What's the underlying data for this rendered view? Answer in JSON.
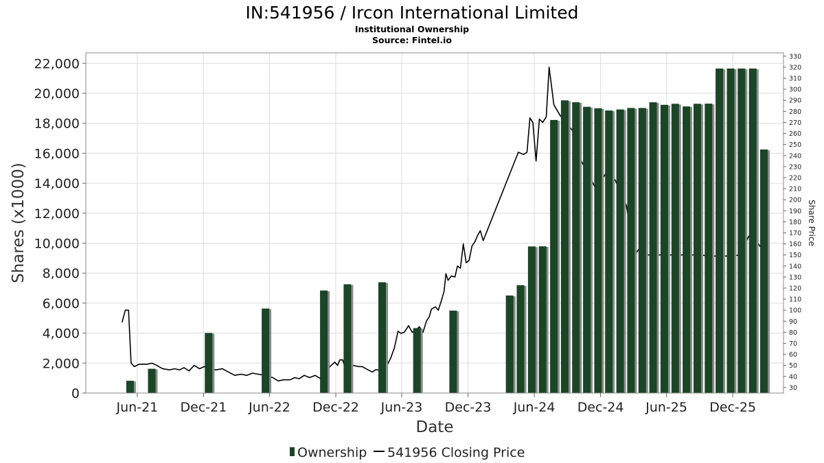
{
  "chart_data": {
    "type": "bar",
    "title": "IN:541956 / Ircon International Limited",
    "subtitle_lines": [
      "Institutional Ownership",
      "Source: Fintel.io"
    ],
    "xlabel": "Date",
    "ylabel": "Shares (x1000)",
    "y2label": "Share Price",
    "ylim": [
      0,
      22700
    ],
    "y2lim": [
      25,
      333
    ],
    "grid": true,
    "legend_position": "bottom-center",
    "colors": {
      "ownership": "#1a4526",
      "ownership_shadow": "#8a8a8a",
      "price": "#000000"
    },
    "left_ticks": [
      "0",
      "2,000",
      "4,000",
      "6,000",
      "8,000",
      "10,000",
      "12,000",
      "14,000",
      "16,000",
      "18,000",
      "20,000",
      "22,000"
    ],
    "left_tick_values": [
      0,
      2000,
      4000,
      6000,
      8000,
      10000,
      12000,
      14000,
      16000,
      18000,
      20000,
      22000
    ],
    "right_ticks": [
      "30",
      "40",
      "50",
      "60",
      "70",
      "80",
      "90",
      "100",
      "110",
      "120",
      "130",
      "140",
      "150",
      "160",
      "170",
      "180",
      "190",
      "200",
      "210",
      "220",
      "230",
      "240",
      "250",
      "260",
      "270",
      "280",
      "290",
      "300",
      "310",
      "320",
      "330"
    ],
    "right_tick_values": [
      30,
      40,
      50,
      60,
      70,
      80,
      90,
      100,
      110,
      120,
      130,
      140,
      150,
      160,
      170,
      180,
      190,
      200,
      210,
      220,
      230,
      240,
      250,
      260,
      270,
      280,
      290,
      300,
      310,
      320,
      330
    ],
    "x_domain": [
      "2021-01-10",
      "2026-04-20"
    ],
    "x_ticks": [
      {
        "label": "Jun-21",
        "date": "2021-06-01"
      },
      {
        "label": "Dec-21",
        "date": "2021-12-01"
      },
      {
        "label": "Jun-22",
        "date": "2022-06-01"
      },
      {
        "label": "Dec-22",
        "date": "2022-12-01"
      },
      {
        "label": "Jun-23",
        "date": "2023-06-01"
      },
      {
        "label": "Dec-23",
        "date": "2023-12-01"
      },
      {
        "label": "Jun-24",
        "date": "2024-06-01"
      },
      {
        "label": "Dec-24",
        "date": "2024-12-01"
      },
      {
        "label": "Jun-25",
        "date": "2025-06-01"
      },
      {
        "label": "Dec-25",
        "date": "2025-12-01"
      }
    ],
    "series": [
      {
        "name": "Ownership",
        "kind": "bar",
        "points": [
          {
            "date": "2021-05-12",
            "value": 820
          },
          {
            "date": "2021-07-11",
            "value": 1620
          },
          {
            "date": "2021-12-15",
            "value": 4010
          },
          {
            "date": "2022-05-21",
            "value": 5640
          },
          {
            "date": "2022-10-29",
            "value": 6840
          },
          {
            "date": "2023-01-02",
            "value": 7260
          },
          {
            "date": "2023-04-08",
            "value": 7390
          },
          {
            "date": "2023-07-13",
            "value": 4330
          },
          {
            "date": "2023-10-21",
            "value": 5500
          },
          {
            "date": "2024-03-25",
            "value": 6510
          },
          {
            "date": "2024-04-24",
            "value": 7200
          },
          {
            "date": "2024-05-25",
            "value": 9780
          },
          {
            "date": "2024-06-24",
            "value": 9790
          },
          {
            "date": "2024-07-25",
            "value": 18220
          },
          {
            "date": "2024-08-24",
            "value": 19530
          },
          {
            "date": "2024-09-24",
            "value": 19400
          },
          {
            "date": "2024-10-24",
            "value": 19100
          },
          {
            "date": "2024-11-24",
            "value": 19000
          },
          {
            "date": "2024-12-24",
            "value": 18850
          },
          {
            "date": "2025-01-24",
            "value": 18920
          },
          {
            "date": "2025-02-23",
            "value": 19020
          },
          {
            "date": "2025-03-26",
            "value": 19020
          },
          {
            "date": "2025-04-25",
            "value": 19400
          },
          {
            "date": "2025-05-26",
            "value": 19230
          },
          {
            "date": "2025-06-25",
            "value": 19300
          },
          {
            "date": "2025-07-26",
            "value": 19120
          },
          {
            "date": "2025-08-25",
            "value": 19300
          },
          {
            "date": "2025-09-25",
            "value": 19310
          },
          {
            "date": "2025-10-25",
            "value": 21650
          },
          {
            "date": "2025-11-25",
            "value": 21650
          },
          {
            "date": "2025-12-25",
            "value": 21650
          },
          {
            "date": "2026-01-25",
            "value": 21650
          },
          {
            "date": "2026-02-25",
            "value": 16250
          }
        ]
      },
      {
        "name": "541956 Closing Price",
        "kind": "line",
        "axis": "right",
        "points": [
          {
            "date": "2021-04-20",
            "price": 89
          },
          {
            "date": "2021-04-29",
            "price": 100
          },
          {
            "date": "2021-05-08",
            "price": 100
          },
          {
            "date": "2021-05-15",
            "price": 52
          },
          {
            "date": "2021-05-24",
            "price": 49
          },
          {
            "date": "2021-06-06",
            "price": 51
          },
          {
            "date": "2021-06-27",
            "price": 51
          },
          {
            "date": "2021-07-12",
            "price": 52
          },
          {
            "date": "2021-07-25",
            "price": 50
          },
          {
            "date": "2021-08-10",
            "price": 47
          },
          {
            "date": "2021-08-29",
            "price": 46
          },
          {
            "date": "2021-09-12",
            "price": 47
          },
          {
            "date": "2021-09-26",
            "price": 46
          },
          {
            "date": "2021-10-08",
            "price": 48
          },
          {
            "date": "2021-10-22",
            "price": 45
          },
          {
            "date": "2021-11-05",
            "price": 50
          },
          {
            "date": "2021-11-20",
            "price": 47
          },
          {
            "date": "2021-12-03",
            "price": 49
          },
          {
            "date": "2021-12-20",
            "price": 46
          },
          {
            "date": "2022-01-05",
            "price": 46
          },
          {
            "date": "2022-01-22",
            "price": 47
          },
          {
            "date": "2022-02-08",
            "price": 44
          },
          {
            "date": "2022-02-25",
            "price": 41
          },
          {
            "date": "2022-03-15",
            "price": 42
          },
          {
            "date": "2022-03-30",
            "price": 41
          },
          {
            "date": "2022-04-15",
            "price": 43
          },
          {
            "date": "2022-05-01",
            "price": 42
          },
          {
            "date": "2022-05-20",
            "price": 41
          },
          {
            "date": "2022-06-10",
            "price": 39
          },
          {
            "date": "2022-06-25",
            "price": 36
          },
          {
            "date": "2022-07-10",
            "price": 37
          },
          {
            "date": "2022-07-28",
            "price": 37
          },
          {
            "date": "2022-08-10",
            "price": 39
          },
          {
            "date": "2022-08-22",
            "price": 38
          },
          {
            "date": "2022-09-05",
            "price": 41
          },
          {
            "date": "2022-09-20",
            "price": 39
          },
          {
            "date": "2022-10-05",
            "price": 41
          },
          {
            "date": "2022-10-20",
            "price": 38
          },
          {
            "date": "2022-11-02",
            "price": 43
          },
          {
            "date": "2022-11-15",
            "price": 49
          },
          {
            "date": "2022-11-28",
            "price": 53
          },
          {
            "date": "2022-12-06",
            "price": 50
          },
          {
            "date": "2022-12-12",
            "price": 55
          },
          {
            "date": "2022-12-20",
            "price": 55
          },
          {
            "date": "2022-12-24",
            "price": 51
          },
          {
            "date": "2023-01-05",
            "price": 51
          },
          {
            "date": "2023-01-18",
            "price": 50
          },
          {
            "date": "2023-02-01",
            "price": 49
          },
          {
            "date": "2023-02-12",
            "price": 49
          },
          {
            "date": "2023-02-28",
            "price": 46
          },
          {
            "date": "2023-03-12",
            "price": 44
          },
          {
            "date": "2023-03-20",
            "price": 46
          },
          {
            "date": "2023-04-05",
            "price": 46
          },
          {
            "date": "2023-04-20",
            "price": 49
          },
          {
            "date": "2023-05-02",
            "price": 57
          },
          {
            "date": "2023-05-12",
            "price": 66
          },
          {
            "date": "2023-05-22",
            "price": 81
          },
          {
            "date": "2023-05-30",
            "price": 79
          },
          {
            "date": "2023-06-08",
            "price": 80
          },
          {
            "date": "2023-06-20",
            "price": 86
          },
          {
            "date": "2023-06-30",
            "price": 80
          },
          {
            "date": "2023-07-10",
            "price": 82
          },
          {
            "date": "2023-07-20",
            "price": 85
          },
          {
            "date": "2023-07-30",
            "price": 80
          },
          {
            "date": "2023-08-08",
            "price": 90
          },
          {
            "date": "2023-08-16",
            "price": 94
          },
          {
            "date": "2023-08-22",
            "price": 101
          },
          {
            "date": "2023-09-02",
            "price": 103
          },
          {
            "date": "2023-09-10",
            "price": 100
          },
          {
            "date": "2023-09-18",
            "price": 108
          },
          {
            "date": "2023-09-26",
            "price": 117
          },
          {
            "date": "2023-10-01",
            "price": 133
          },
          {
            "date": "2023-10-07",
            "price": 127
          },
          {
            "date": "2023-10-16",
            "price": 131
          },
          {
            "date": "2023-10-26",
            "price": 130
          },
          {
            "date": "2023-11-02",
            "price": 140
          },
          {
            "date": "2023-11-10",
            "price": 138
          },
          {
            "date": "2023-11-18",
            "price": 160
          },
          {
            "date": "2023-11-26",
            "price": 143
          },
          {
            "date": "2023-12-04",
            "price": 145
          },
          {
            "date": "2023-12-12",
            "price": 158
          },
          {
            "date": "2023-12-20",
            "price": 162
          },
          {
            "date": "2023-12-28",
            "price": 168
          },
          {
            "date": "2024-01-04",
            "price": 172
          },
          {
            "date": "2024-01-12",
            "price": 163
          },
          {
            "date": "2024-04-01",
            "price": 229
          },
          {
            "date": "2024-04-18",
            "price": 243
          },
          {
            "date": "2024-05-02",
            "price": 241
          },
          {
            "date": "2024-05-12",
            "price": 243
          },
          {
            "date": "2024-05-20",
            "price": 274
          },
          {
            "date": "2024-05-28",
            "price": 270
          },
          {
            "date": "2024-06-06",
            "price": 235
          },
          {
            "date": "2024-06-15",
            "price": 273
          },
          {
            "date": "2024-06-24",
            "price": 270
          },
          {
            "date": "2024-07-04",
            "price": 275
          },
          {
            "date": "2024-07-12",
            "price": 320
          },
          {
            "date": "2024-07-25",
            "price": 286
          },
          {
            "date": "2024-08-12",
            "price": 276
          },
          {
            "date": "2024-09-16",
            "price": 262
          },
          {
            "date": "2024-10-09",
            "price": 235
          },
          {
            "date": "2024-11-18",
            "price": 210
          },
          {
            "date": "2024-12-18",
            "price": 225
          },
          {
            "date": "2025-01-10",
            "price": 218
          },
          {
            "date": "2025-02-10",
            "price": 195
          },
          {
            "date": "2025-03-06",
            "price": 150
          },
          {
            "date": "2025-03-22",
            "price": 158
          },
          {
            "date": "2025-04-06",
            "price": 150
          },
          {
            "date": "2025-05-20",
            "price": 150
          },
          {
            "date": "2025-07-10",
            "price": 150
          },
          {
            "date": "2025-08-25",
            "price": 150
          },
          {
            "date": "2025-10-10",
            "price": 149
          },
          {
            "date": "2025-11-25",
            "price": 149
          },
          {
            "date": "2025-12-22",
            "price": 150
          },
          {
            "date": "2026-01-14",
            "price": 167
          },
          {
            "date": "2026-01-28",
            "price": 166
          },
          {
            "date": "2026-02-20",
            "price": 155
          }
        ]
      }
    ]
  },
  "legend": {
    "items": [
      {
        "label": "Ownership",
        "color": "#1a4526",
        "kind": "bar"
      },
      {
        "label": "541956 Closing Price",
        "color": "#000000",
        "kind": "line"
      }
    ]
  }
}
